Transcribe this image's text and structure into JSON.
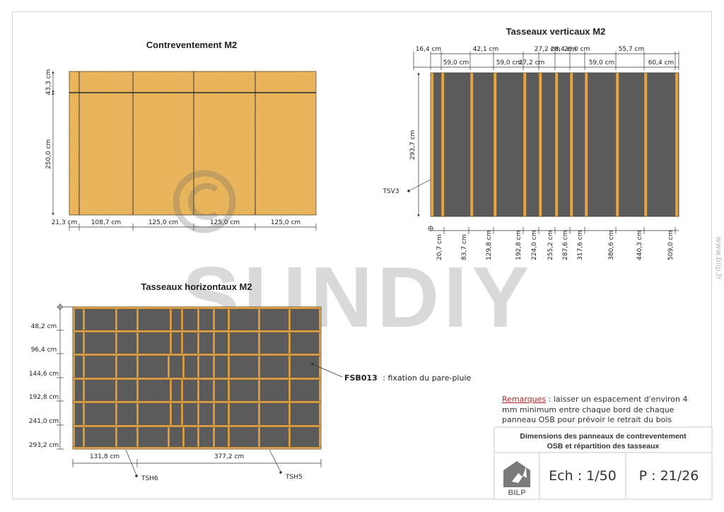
{
  "bracing": {
    "title": "Contreventement M2",
    "vertical_dims": [
      "43,3 cm",
      "250,0 cm"
    ],
    "horizontal_dims": [
      "21,3 cm",
      "108,7 cm",
      "125,0 cm",
      "125,0 cm",
      "125,0 cm"
    ]
  },
  "vertical_battens": {
    "title": "Tasseaux verticaux M2",
    "height_dim": "293,7 cm",
    "callout": "TSV3",
    "spacing_dims": [
      "16,4 cm",
      "59,0 cm",
      "42,1 cm",
      "59,0 cm",
      "27,2 cm",
      "27,2 cm",
      "28,4 cm",
      "26,0 cm",
      "59,0 cm",
      "55,7 cm",
      "60,4 cm"
    ],
    "cumulative_dims": [
      "20,7 cm",
      "83,7 cm",
      "129,8 cm",
      "192,8 cm",
      "224,0 cm",
      "255,2 cm",
      "287,6 cm",
      "317,6 cm",
      "380,6 cm",
      "440,3 cm",
      "509,0 cm"
    ]
  },
  "horizontal_battens": {
    "title": "Tasseaux horizontaux M2",
    "level_dims": [
      "48,2 cm",
      "96,4 cm",
      "144,6 cm",
      "192,8 cm",
      "241,0 cm",
      "293,2 cm"
    ],
    "bottom_dims": [
      "131,8 cm",
      "377,2 cm"
    ],
    "callouts": [
      "TSH6",
      "TSH5"
    ],
    "fixing_code": "FSB013",
    "fixing_text": ": fixation du pare-pluie"
  },
  "remarks": {
    "label": "Remarques",
    "lines": [
      " : laisser un espacement d'environ 4",
      "mm minimum entre chaque bord de chaque",
      "panneau OSB pour prévoir le retrait du bois"
    ]
  },
  "title_block": {
    "heading_lines": [
      "Dimensions des panneaux de contreventement",
      "OSB et répartition des tasseaux"
    ],
    "logo_text": "BILP",
    "scale": "Ech : 1/50",
    "page": "P : 21/26"
  },
  "watermark": {
    "text": "SUNDIY",
    "symbol": "©",
    "site": "www.bilp.fr"
  },
  "colors": {
    "osb": "#e8b45c",
    "wood": "#e2a54c",
    "membrane": "#5b5b5b",
    "remark_red": "#b8262b"
  }
}
